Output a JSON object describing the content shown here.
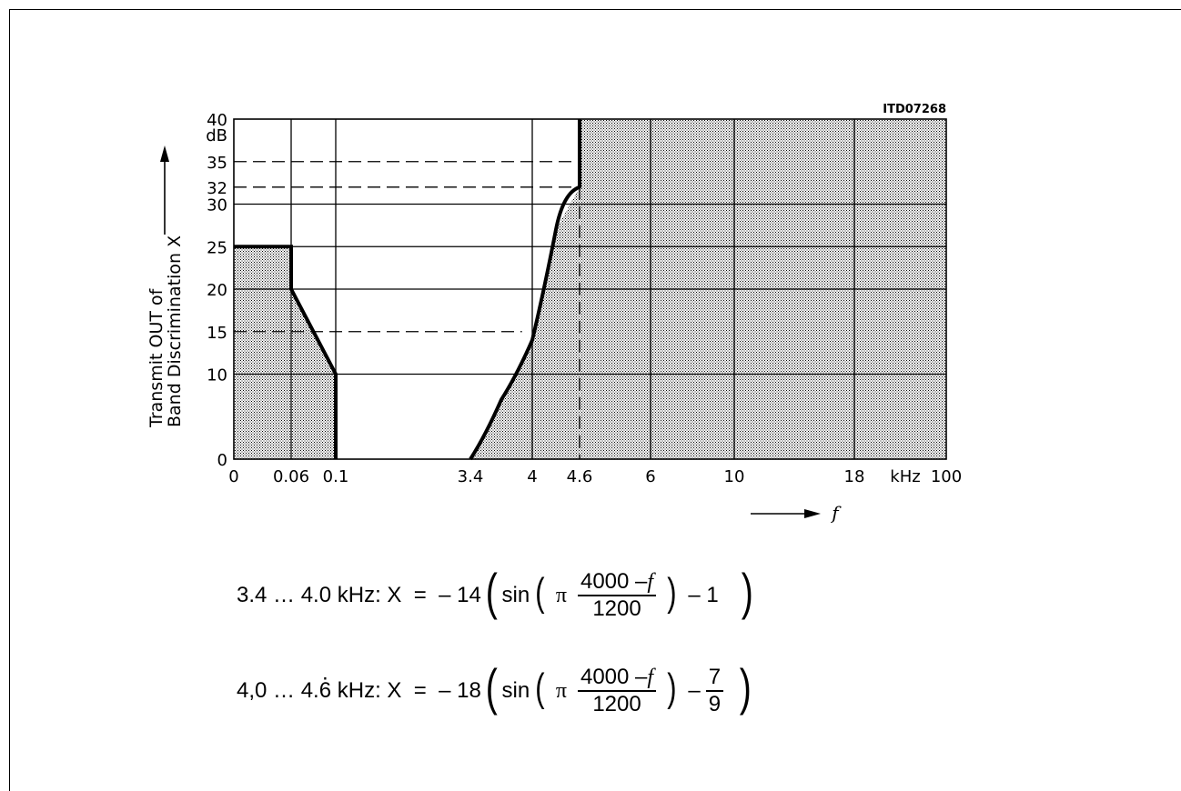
{
  "figure_code": "ITD07268",
  "chart_data": {
    "type": "area",
    "ylabel_line1": "Transmit OUT of",
    "ylabel_line2": "Band Discrimination X",
    "y_unit": "dB",
    "x_variable": "f",
    "x_unit": "kHz",
    "ylim": [
      0,
      40
    ],
    "y_ticks": [
      0,
      10,
      15,
      20,
      25,
      30,
      32,
      35,
      40
    ],
    "x_ticks": [
      "0",
      "0.06",
      "0.1",
      "3.4",
      "4",
      "4.6",
      "6",
      "10",
      "18",
      "100"
    ],
    "x_tick_values": [
      0,
      0.06,
      0.1,
      3.4,
      4,
      4.6,
      6,
      10,
      18,
      100
    ],
    "x_scale": "non-linear",
    "grid": true,
    "dashed_levels": [
      35,
      32,
      15
    ],
    "series": [
      {
        "x": [
          0,
          0.06,
          0.06,
          0.1,
          0.1
        ],
        "y": [
          25,
          25,
          20,
          10,
          0
        ]
      },
      {
        "x": [
          3.4,
          3.7,
          4.0,
          4.3,
          4.6,
          4.6
        ],
        "y": [
          0,
          7,
          14,
          27,
          32,
          40
        ]
      }
    ]
  },
  "formulas": [
    {
      "range": "3.4 … 4.0 kHz:",
      "lhs": "X",
      "eq": "=",
      "coef": "– 14",
      "fn": "sin",
      "pi": "π",
      "num": "4000 –",
      "num_var": "f",
      "den": "1200",
      "tail_op": "– 1",
      "tail_num": "",
      "tail_den": ""
    },
    {
      "range_a": "4,0 … 4.",
      "range_b": "6",
      "range_c": " kHz:",
      "lhs": "X",
      "eq": "=",
      "coef": "– 18",
      "fn": "sin",
      "pi": "π",
      "num": "4000 –",
      "num_var": "f",
      "den": "1200",
      "tail_op": "–",
      "tail_num": "7",
      "tail_den": "9"
    }
  ]
}
